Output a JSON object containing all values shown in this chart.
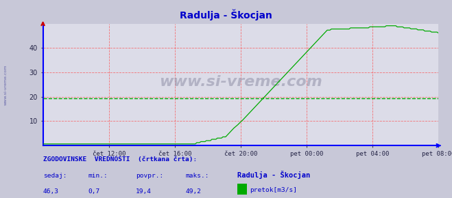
{
  "title": "Radulja - Škocjan",
  "title_color": "#0000cc",
  "bg_color": "#c8c8d8",
  "plot_bg_color": "#dcdce8",
  "x_labels": [
    "čet 12:00",
    "čet 16:00",
    "čet 20:00",
    "pet 00:00",
    "pet 04:00",
    "pet 08:00"
  ],
  "x_ticks_norm": [
    0.1667,
    0.3333,
    0.5,
    0.6667,
    0.8333,
    1.0
  ],
  "ylim": [
    0,
    50
  ],
  "yticks": [
    10,
    20,
    30,
    40
  ],
  "grid_color": "#ff4444",
  "line_color": "#00aa00",
  "avg_value": 19.4,
  "axis_color": "#0000ff",
  "red_arrow_color": "#cc0000",
  "watermark": "www.si-vreme.com",
  "watermark_color": "#9090a8",
  "sidebar_text": "www.si-vreme.com",
  "footer_text1": "ZGODOVINSKE  VREDNOSTI  (črtkana črta):",
  "footer_text2_labels": [
    "sedaj:",
    "min.:",
    "povpr.:",
    "maks.:"
  ],
  "footer_text2_values": [
    "46,3",
    "0,7",
    "19,4",
    "49,2"
  ],
  "footer_station": "Radulja - Škocjan",
  "footer_legend": "pretok[m3/s]",
  "footer_color": "#0000cc"
}
